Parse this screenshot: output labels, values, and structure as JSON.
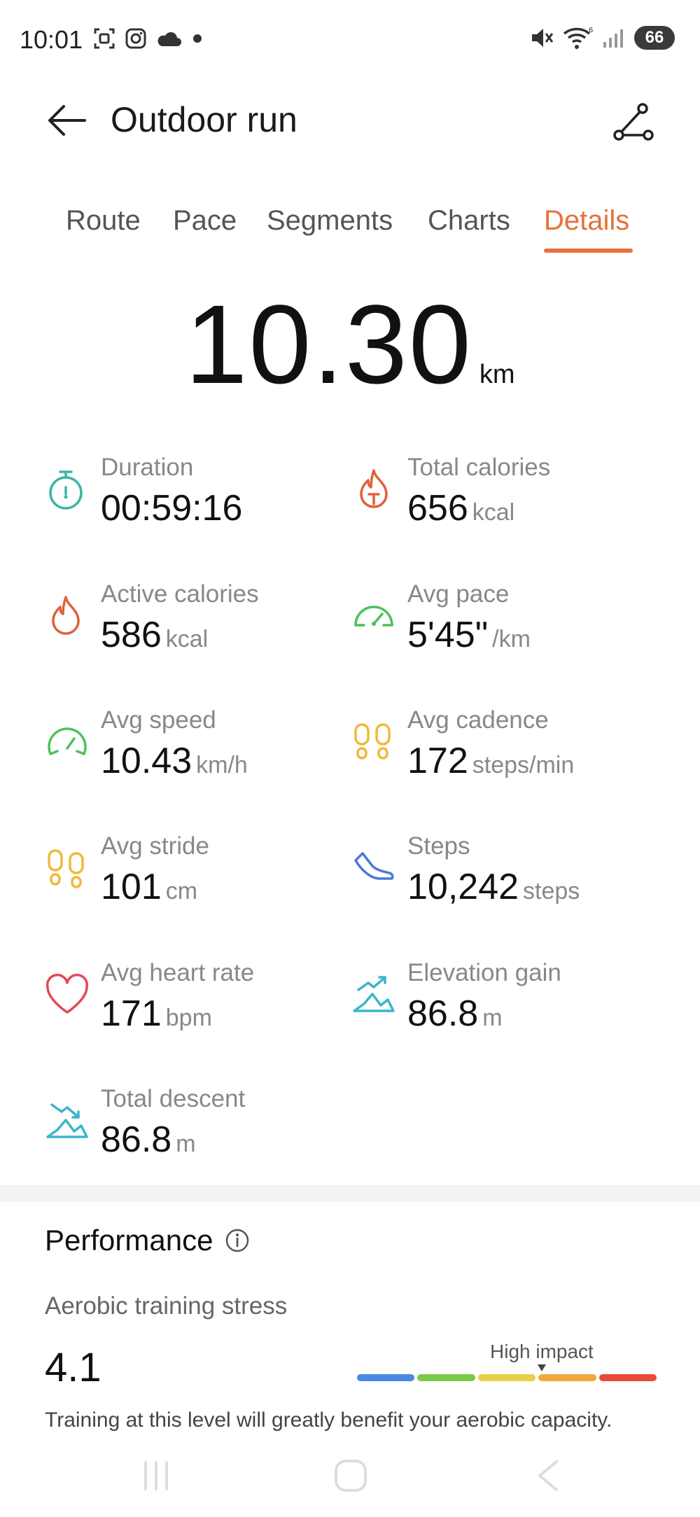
{
  "status_bar": {
    "time": "10:01",
    "battery": "66",
    "icons": [
      "screenshot-icon",
      "instagram-icon",
      "cloud-icon",
      "dot-icon",
      "mute-icon",
      "wifi-icon",
      "signal-icon",
      "battery-icon"
    ]
  },
  "header": {
    "title": "Outdoor run",
    "back_icon": "arrow-left-icon",
    "route_icon": "route-icon"
  },
  "tabs": [
    {
      "label": "Route",
      "active": false
    },
    {
      "label": "Pace",
      "active": false
    },
    {
      "label": "Segments",
      "active": false
    },
    {
      "label": "Charts",
      "active": false
    },
    {
      "label": "Details",
      "active": true
    }
  ],
  "accent_color": "#e8703a",
  "distance": {
    "value": "10.30",
    "unit": "km"
  },
  "metrics": [
    {
      "label": "Duration",
      "value": "00:59:16",
      "unit": "",
      "icon": "stopwatch-icon",
      "color": "#3ab5a3"
    },
    {
      "label": "Total calories",
      "value": "656",
      "unit": "kcal",
      "icon": "total-calories-icon",
      "color": "#e0603a"
    },
    {
      "label": "Active calories",
      "value": "586",
      "unit": "kcal",
      "icon": "flame-icon",
      "color": "#e0603a"
    },
    {
      "label": "Avg pace",
      "value": "5'45\"",
      "unit": "/km",
      "icon": "speedometer-icon",
      "color": "#4cc25a"
    },
    {
      "label": "Avg speed",
      "value": "10.43",
      "unit": "km/h",
      "icon": "gauge-icon",
      "color": "#4cc25a"
    },
    {
      "label": "Avg cadence",
      "value": "172",
      "unit": "steps/min",
      "icon": "footprints-icon",
      "color": "#f0b93a"
    },
    {
      "label": "Avg stride",
      "value": "101",
      "unit": "cm",
      "icon": "footprints-icon",
      "color": "#f0b93a"
    },
    {
      "label": "Steps",
      "value": "10,242",
      "unit": "steps",
      "icon": "shoe-icon",
      "color": "#4a78d8"
    },
    {
      "label": "Avg heart rate",
      "value": "171",
      "unit": "bpm",
      "icon": "heart-icon",
      "color": "#e04a5a"
    },
    {
      "label": "Elevation gain",
      "value": "86.8",
      "unit": "m",
      "icon": "elevation-gain-icon",
      "color": "#3ab5c8"
    },
    {
      "label": "Total descent",
      "value": "86.8",
      "unit": "m",
      "icon": "descent-icon",
      "color": "#3ab5c8"
    }
  ],
  "performance": {
    "title": "Performance",
    "aerobic_label": "Aerobic training stress",
    "aerobic_value": "4.1",
    "impact_label": "High impact",
    "impact_colors": [
      "#4a86e8",
      "#7cc948",
      "#e8d048",
      "#f0a83a",
      "#e84a3a"
    ],
    "description": "Training at this level will greatly benefit your aerobic capacity."
  },
  "nav_bar": {
    "icons": [
      "recent-apps-icon",
      "home-icon",
      "back-icon"
    ]
  }
}
